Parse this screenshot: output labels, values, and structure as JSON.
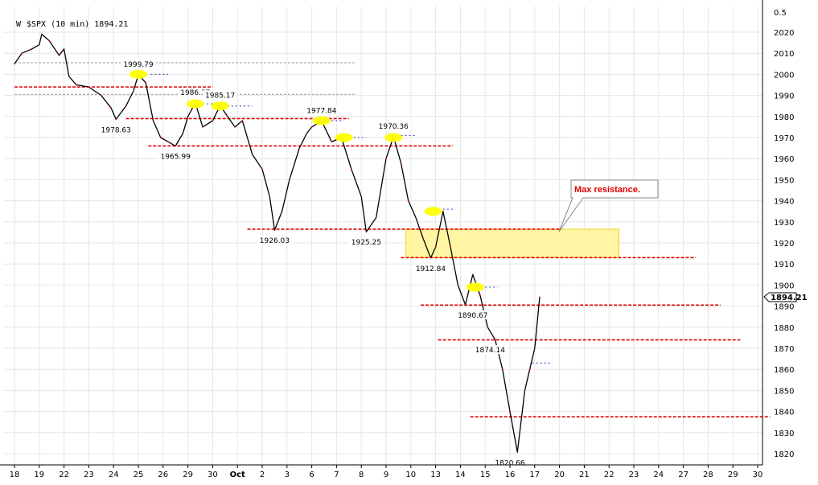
{
  "chart_data": {
    "type": "line",
    "title": "$SPX (10 min) 1894.21",
    "last_value_label": "1894.21",
    "ylim": [
      1815,
      2030
    ],
    "y_ticks": [
      1820,
      1830,
      1840,
      1850,
      1860,
      1870,
      1880,
      1890,
      1900,
      1910,
      1920,
      1930,
      1940,
      1950,
      1960,
      1970,
      1980,
      1990,
      2000,
      2010,
      2020
    ],
    "y_extra_tick": "0.5",
    "x_ticks": [
      "18",
      "19",
      "22",
      "23",
      "24",
      "25",
      "26",
      "29",
      "30",
      "Oct",
      "2",
      "3",
      "6",
      "7",
      "8",
      "9",
      "10",
      "13",
      "14",
      "15",
      "16",
      "17",
      "20",
      "21",
      "22",
      "23",
      "24",
      "27",
      "28",
      "29",
      "30"
    ],
    "series": [
      {
        "x": [
          0,
          0.3,
          0.7,
          1,
          1.1,
          1.4,
          1.8,
          2,
          2.2,
          2.5,
          3,
          3.5,
          3.9,
          4.1,
          4.5,
          4.8,
          5,
          5.3,
          5.6,
          5.9,
          6.2,
          6.5,
          6.8,
          7,
          7.3,
          7.6,
          8,
          8.3,
          8.6,
          8.9,
          9.2,
          9.6,
          10,
          10.3,
          10.5,
          10.8,
          11.1,
          11.5,
          11.8,
          12,
          12.4,
          12.8,
          13.2,
          13.6,
          14,
          14.2,
          14.6,
          15,
          15.3,
          15.6,
          15.9,
          16.2,
          16.5,
          16.8,
          17,
          17.3,
          17.6,
          17.9,
          18.2,
          18.5,
          18.8,
          19.1,
          19.4,
          19.7,
          20,
          20.3,
          20.6,
          20.8,
          21,
          21.2
        ],
        "y": [
          2005,
          2010,
          2012,
          2014,
          2019,
          2016,
          2009,
          2012,
          1999,
          1995,
          1994,
          1990,
          1984,
          1978.63,
          1985,
          1992,
          1999.79,
          1996,
          1978,
          1970,
          1968,
          1965.99,
          1972,
          1980,
          1986.37,
          1975,
          1978,
          1985.17,
          1980,
          1975,
          1978,
          1962,
          1955,
          1942,
          1926.03,
          1935,
          1950,
          1965,
          1972,
          1975,
          1977.84,
          1968,
          1970,
          1955,
          1942,
          1925.25,
          1932,
          1960,
          1970.36,
          1958,
          1940,
          1932,
          1922,
          1912.84,
          1918,
          1935,
          1918,
          1900,
          1890.67,
          1905,
          1895,
          1880,
          1874.14,
          1860,
          1840,
          1820.66,
          1850,
          1860,
          1870,
          1894.21
        ]
      }
    ],
    "labeled_points": [
      {
        "x": 5,
        "y": 1999.79,
        "label": "1999.79",
        "pos": "above"
      },
      {
        "x": 7.3,
        "y": 1986.37,
        "label": "1986.37",
        "pos": "above"
      },
      {
        "x": 8.3,
        "y": 1985.17,
        "label": "1985.17",
        "pos": "above"
      },
      {
        "x": 4.1,
        "y": 1978.63,
        "label": "1978.63",
        "pos": "below"
      },
      {
        "x": 6.5,
        "y": 1965.99,
        "label": "1965.99",
        "pos": "below"
      },
      {
        "x": 10.5,
        "y": 1926.03,
        "label": "1926.03",
        "pos": "below"
      },
      {
        "x": 12.4,
        "y": 1977.84,
        "label": "1977.84",
        "pos": "above"
      },
      {
        "x": 14.2,
        "y": 1925.25,
        "label": "1925.25",
        "pos": "below"
      },
      {
        "x": 15.3,
        "y": 1970.36,
        "label": "1970.36",
        "pos": "above"
      },
      {
        "x": 16.8,
        "y": 1912.84,
        "label": "1912.84",
        "pos": "below"
      },
      {
        "x": 18.5,
        "y": 1890.67,
        "label": "1890.67",
        "pos": "below"
      },
      {
        "x": 19.2,
        "y": 1874.14,
        "label": "1874.14",
        "pos": "below"
      },
      {
        "x": 20,
        "y": 1820.66,
        "label": "1820.66",
        "pos": "below"
      }
    ],
    "yellow_markers": [
      {
        "x": 5,
        "y": 2000
      },
      {
        "x": 7.3,
        "y": 1986
      },
      {
        "x": 8.3,
        "y": 1985
      },
      {
        "x": 12.4,
        "y": 1978
      },
      {
        "x": 13.3,
        "y": 1970
      },
      {
        "x": 15.3,
        "y": 1970
      },
      {
        "x": 16.9,
        "y": 1935
      },
      {
        "x": 18.6,
        "y": 1899
      }
    ],
    "red_lines": [
      {
        "y": 1994,
        "x0": 0,
        "x1": 8
      },
      {
        "y": 1979,
        "x0": 4.5,
        "x1": 13.5
      },
      {
        "y": 1966,
        "x0": 5.4,
        "x1": 17.7
      },
      {
        "y": 1926.5,
        "x0": 9.4,
        "x1": 22
      },
      {
        "y": 1913,
        "x0": 15.6,
        "x1": 27.5
      },
      {
        "y": 1890.5,
        "x0": 16.4,
        "x1": 28.5
      },
      {
        "y": 1874,
        "x0": 17.1,
        "x1": 29.3
      },
      {
        "y": 1837.5,
        "x0": 18.4,
        "x1": 30.5
      }
    ],
    "gray_lines": [
      {
        "y": 2005.5,
        "x0": 0,
        "x1": 13.8
      },
      {
        "y": 1990.5,
        "x0": 0,
        "x1": 13.8
      }
    ],
    "blue_dotted_lines": [
      {
        "y": 2000,
        "x0": 5.5,
        "x1": 6.2
      },
      {
        "y": 1986,
        "x0": 7.6,
        "x1": 8.1
      },
      {
        "y": 1985,
        "x0": 8.6,
        "x1": 9.6
      },
      {
        "y": 1978,
        "x0": 12.8,
        "x1": 13.3
      },
      {
        "y": 1970,
        "x0": 13.7,
        "x1": 14.2
      },
      {
        "y": 1971,
        "x0": 15.6,
        "x1": 16.2
      },
      {
        "y": 1936,
        "x0": 17.3,
        "x1": 17.7
      },
      {
        "y": 1899,
        "x0": 19,
        "x1": 19.5
      },
      {
        "y": 1863,
        "x0": 20.9,
        "x1": 21.7
      }
    ],
    "resistance_zone": {
      "x0": 15.8,
      "x1": 24.4,
      "y0": 1913,
      "y1": 1926.5,
      "color": "#fff59a"
    },
    "annotation": {
      "text": "Max resistance.",
      "color": "#e00000"
    },
    "colors": {
      "red_line": "#e00000",
      "gray_line": "#9a9a9a",
      "blue_dotted": "#1f3fbf",
      "price": "#000000",
      "yellow_marker": "#ffff00",
      "grid": "#e6e6e6"
    }
  }
}
